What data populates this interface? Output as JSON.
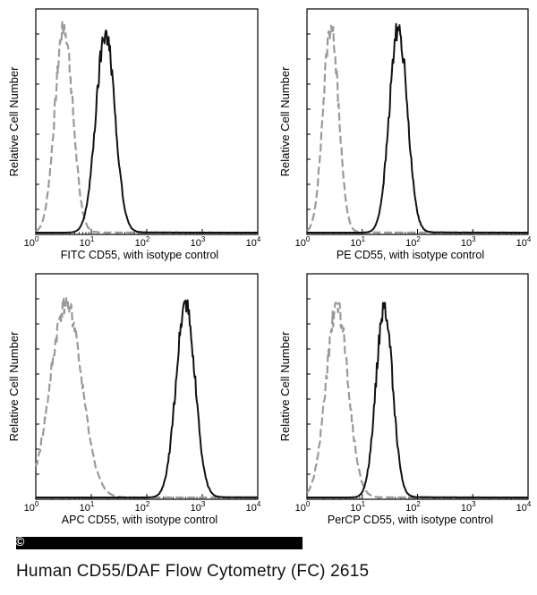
{
  "caption": "Human CD55/DAF Flow Cytometry (FC) 2615",
  "copyright_symbol": "©",
  "colors": {
    "sample": "#111111",
    "isotope": "#9a9a9a",
    "frame": "#000000"
  },
  "chart_data": [
    {
      "type": "line",
      "panel": "top-left",
      "xlabel": "FITC  CD55,  with isotype control",
      "ylabel": "Relative Cell Number",
      "xscale": "log",
      "xlim": [
        1,
        10000
      ],
      "x_ticks": [
        "0",
        "1",
        "2",
        "3",
        "4"
      ],
      "series": [
        {
          "role": "isotype",
          "style": "dashed",
          "peak_x": 3.2,
          "spread_decades": 0.16,
          "height": 0.93
        },
        {
          "role": "sample",
          "style": "solid",
          "peak_x": 18,
          "spread_decades": 0.17,
          "height": 0.9
        }
      ]
    },
    {
      "type": "line",
      "panel": "top-right",
      "xlabel": "PE CD55,  with isotype control",
      "ylabel": "Relative Cell Number",
      "xscale": "log",
      "xlim": [
        1,
        10000
      ],
      "x_ticks": [
        "0",
        "1",
        "2",
        "3",
        "4"
      ],
      "series": [
        {
          "role": "isotype",
          "style": "dashed",
          "peak_x": 2.7,
          "spread_decades": 0.14,
          "height": 0.93
        },
        {
          "role": "sample",
          "style": "solid",
          "peak_x": 45,
          "spread_decades": 0.16,
          "height": 0.93
        }
      ]
    },
    {
      "type": "line",
      "panel": "bottom-left",
      "xlabel": "APC CD55, with isotype control",
      "ylabel": "Relative Cell Number",
      "xscale": "log",
      "xlim": [
        1,
        10000
      ],
      "x_ticks": [
        "0",
        "1",
        "2",
        "3",
        "4"
      ],
      "series": [
        {
          "role": "isotype",
          "style": "dashed",
          "peak_x": 3.5,
          "spread_decades": 0.28,
          "height": 0.88
        },
        {
          "role": "sample",
          "style": "solid",
          "peak_x": 500,
          "spread_decades": 0.17,
          "height": 0.88
        }
      ]
    },
    {
      "type": "line",
      "panel": "bottom-right",
      "xlabel": "PerCP CD55, with isotype control",
      "ylabel": "Relative Cell Number",
      "xscale": "log",
      "xlim": [
        1,
        10000
      ],
      "x_ticks": [
        "0",
        "1",
        "2",
        "3",
        "4"
      ],
      "series": [
        {
          "role": "isotype",
          "style": "dashed",
          "peak_x": 3.5,
          "spread_decades": 0.2,
          "height": 0.86
        },
        {
          "role": "sample",
          "style": "solid",
          "peak_x": 25,
          "spread_decades": 0.15,
          "height": 0.86
        }
      ]
    }
  ]
}
